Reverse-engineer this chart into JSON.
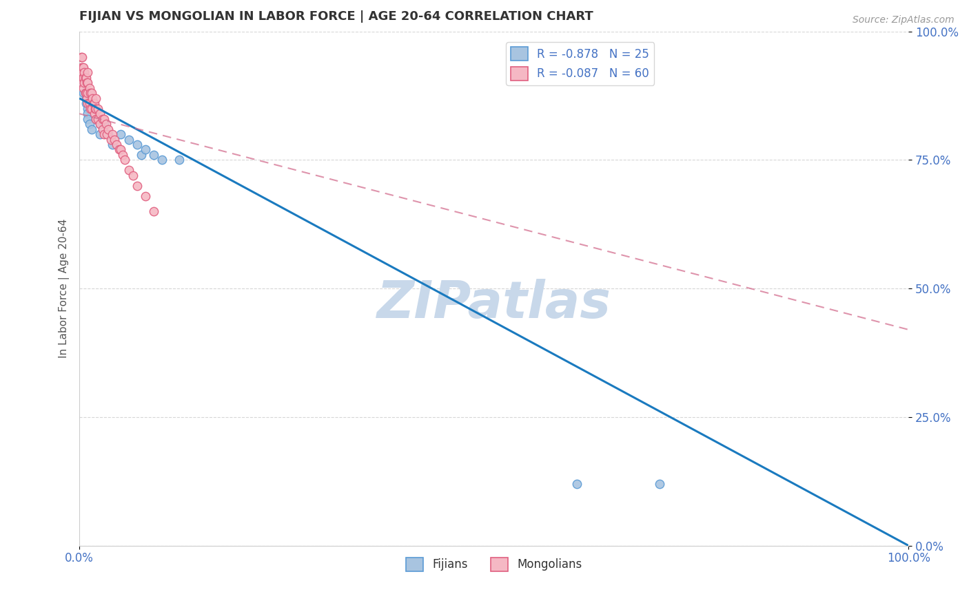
{
  "title": "FIJIAN VS MONGOLIAN IN LABOR FORCE | AGE 20-64 CORRELATION CHART",
  "source_text": "Source: ZipAtlas.com",
  "ylabel": "In Labor Force | Age 20-64",
  "xlim": [
    0,
    1.0
  ],
  "ylim": [
    0,
    1.0
  ],
  "xtick_positions": [
    0.0,
    1.0
  ],
  "xticklabels": [
    "0.0%",
    "100.0%"
  ],
  "ytick_positions": [
    0.0,
    0.25,
    0.5,
    0.75,
    1.0
  ],
  "yticklabels": [
    "0.0%",
    "25.0%",
    "50.0%",
    "75.0%",
    "100.0%"
  ],
  "fijian_color": "#a8c4e0",
  "mongolian_color": "#f5b8c4",
  "fijian_edge_color": "#5b9bd5",
  "mongolian_edge_color": "#e06080",
  "trendline_fijian_color": "#1a7abf",
  "trendline_mongolian_color": "#d47090",
  "legend_fijian_label": "R = -0.878   N = 25",
  "legend_mongolian_label": "R = -0.087   N = 60",
  "watermark": "ZIPatlas",
  "watermark_color": "#c8d8ea",
  "fijian_x": [
    0.005,
    0.005,
    0.008,
    0.008,
    0.01,
    0.01,
    0.01,
    0.012,
    0.015,
    0.02,
    0.025,
    0.025,
    0.03,
    0.035,
    0.04,
    0.05,
    0.06,
    0.07,
    0.075,
    0.08,
    0.09,
    0.1,
    0.12,
    0.6,
    0.7
  ],
  "fijian_y": [
    0.9,
    0.88,
    0.87,
    0.86,
    0.85,
    0.84,
    0.83,
    0.82,
    0.81,
    0.83,
    0.82,
    0.8,
    0.82,
    0.8,
    0.78,
    0.8,
    0.79,
    0.78,
    0.76,
    0.77,
    0.76,
    0.75,
    0.75,
    0.12,
    0.12
  ],
  "mongolian_x": [
    0.002,
    0.002,
    0.003,
    0.003,
    0.003,
    0.004,
    0.004,
    0.005,
    0.005,
    0.005,
    0.006,
    0.006,
    0.007,
    0.007,
    0.008,
    0.008,
    0.009,
    0.009,
    0.01,
    0.01,
    0.01,
    0.01,
    0.012,
    0.012,
    0.013,
    0.013,
    0.015,
    0.015,
    0.016,
    0.017,
    0.018,
    0.018,
    0.019,
    0.02,
    0.02,
    0.02,
    0.022,
    0.022,
    0.025,
    0.025,
    0.028,
    0.028,
    0.03,
    0.03,
    0.032,
    0.033,
    0.035,
    0.038,
    0.04,
    0.042,
    0.045,
    0.048,
    0.05,
    0.052,
    0.055,
    0.06,
    0.065,
    0.07,
    0.08,
    0.09
  ],
  "mongolian_y": [
    0.95,
    0.93,
    0.95,
    0.92,
    0.9,
    0.93,
    0.91,
    0.93,
    0.91,
    0.89,
    0.92,
    0.9,
    0.91,
    0.88,
    0.91,
    0.88,
    0.9,
    0.87,
    0.92,
    0.9,
    0.88,
    0.86,
    0.89,
    0.86,
    0.88,
    0.85,
    0.88,
    0.85,
    0.87,
    0.86,
    0.86,
    0.84,
    0.85,
    0.87,
    0.85,
    0.83,
    0.85,
    0.83,
    0.84,
    0.82,
    0.83,
    0.81,
    0.83,
    0.8,
    0.82,
    0.8,
    0.81,
    0.79,
    0.8,
    0.79,
    0.78,
    0.77,
    0.77,
    0.76,
    0.75,
    0.73,
    0.72,
    0.7,
    0.68,
    0.65
  ],
  "background_color": "#ffffff",
  "grid_color": "#cccccc",
  "title_color": "#333333",
  "axis_color": "#4472c4",
  "marker_size": 80,
  "trendline_fijian_x0": 0.0,
  "trendline_fijian_y0": 0.87,
  "trendline_fijian_x1": 1.0,
  "trendline_fijian_y1": 0.0,
  "trendline_mongolian_x0": 0.0,
  "trendline_mongolian_y0": 0.84,
  "trendline_mongolian_x1": 1.0,
  "trendline_mongolian_y1": 0.42
}
